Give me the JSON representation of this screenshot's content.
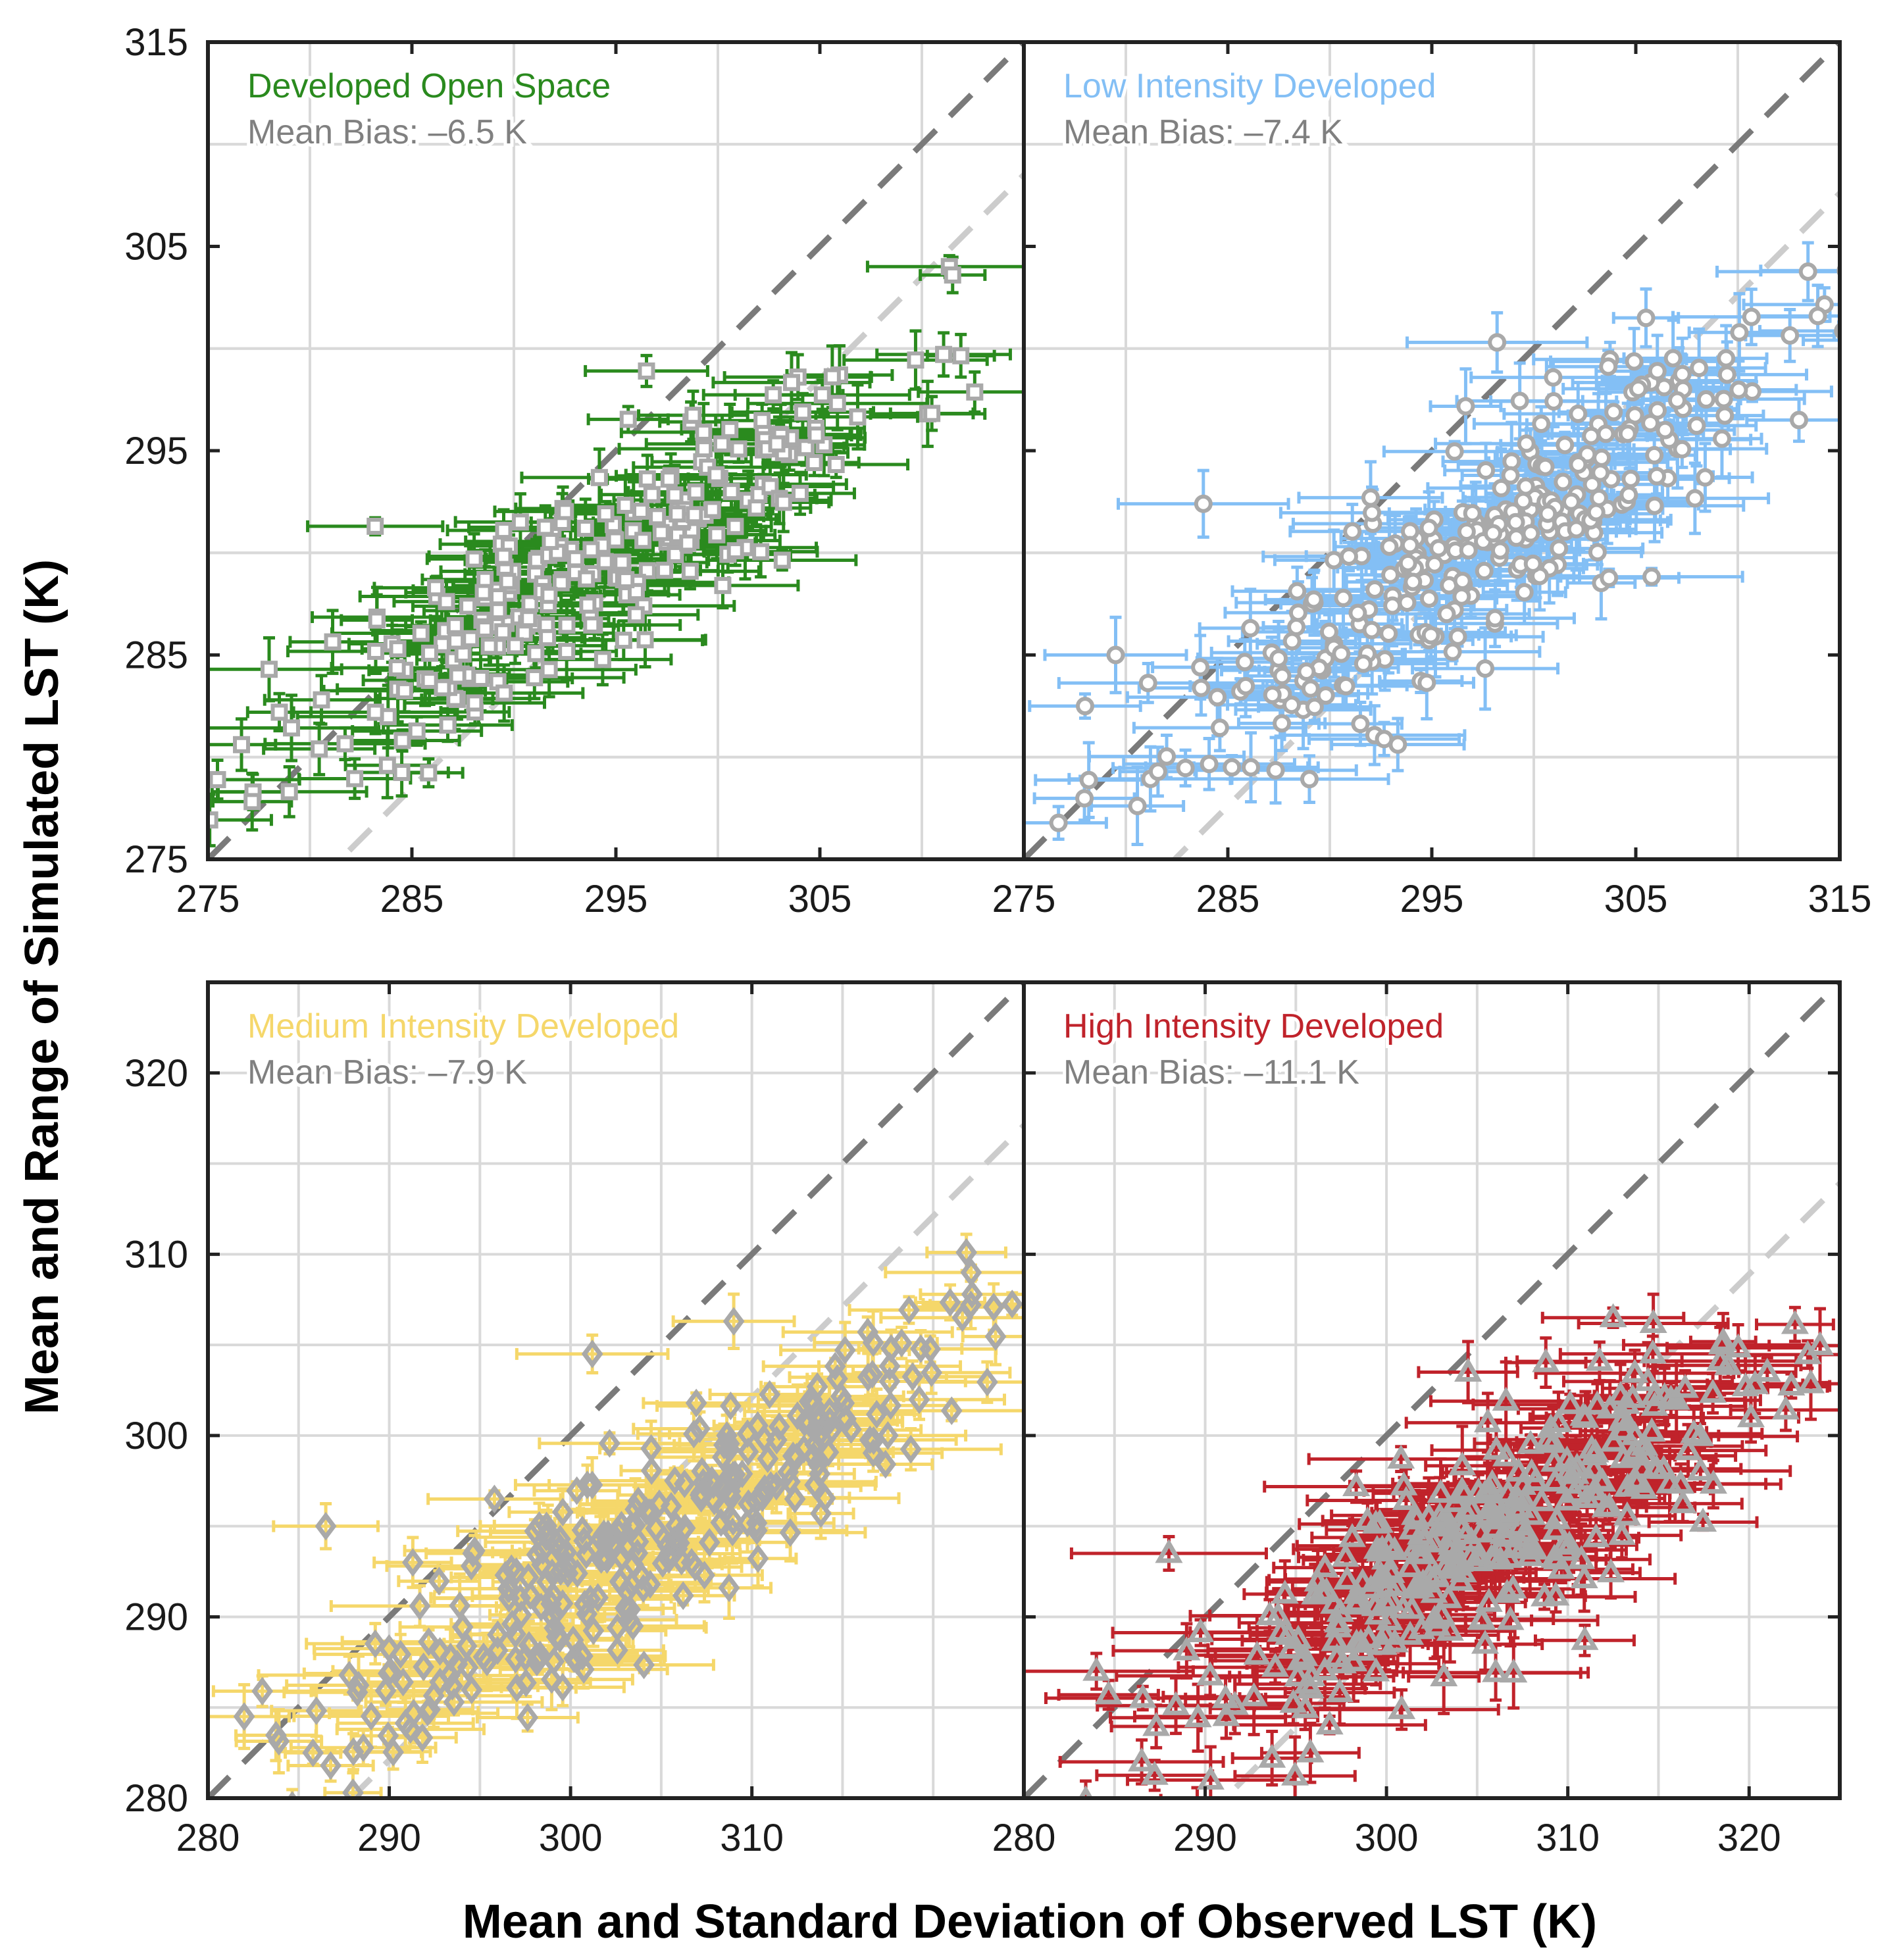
{
  "chart_data": {
    "type": "scatter",
    "ylabel": "Mean and Range of Simulated LST (K)",
    "xlabel": "Mean and Standard Deviation of Observed LST (K)",
    "colors": {
      "one_to_one_line": "#7a7a7a",
      "bias_line": "#cccccc",
      "marker_edge": "#a9a9a9",
      "grid": "#d9d9d9"
    },
    "panels": [
      {
        "id": "developed-open-space",
        "title": "Developed Open Space",
        "bias_label": "Mean Bias: –6.5 K",
        "mean_bias": -6.5,
        "color": "#2a8a1e",
        "marker": "square",
        "xlim": [
          275,
          315
        ],
        "ylim": [
          275,
          315
        ],
        "xticks": [
          275,
          285,
          295,
          305
        ],
        "yticks": [
          275,
          285,
          295,
          305,
          315
        ],
        "center": [
          294,
          289.5
        ],
        "slope": 0.58,
        "spread": [
          7.5,
          1.4
        ],
        "xerr": [
          1.5,
          4.5
        ],
        "yerr": [
          0.4,
          1.6
        ],
        "n": 260,
        "seed": 11,
        "extra_points": [
          [
            278,
            284.3
          ],
          [
            278.5,
            282.2
          ],
          [
            283.2,
            291.3
          ],
          [
            283.8,
            279.6
          ],
          [
            289.5,
            291.1
          ],
          [
            296.5,
            298.9
          ]
        ]
      },
      {
        "id": "low-intensity-developed",
        "title": "Low Intensity Developed",
        "bias_label": "Mean Bias: –7.4 K",
        "mean_bias": -7.4,
        "color": "#83bff5",
        "marker": "circle",
        "xlim": [
          275,
          315
        ],
        "ylim": [
          275,
          315
        ],
        "xticks": [
          275,
          285,
          295,
          305,
          315
        ],
        "yticks": [],
        "center": [
          297,
          290
        ],
        "slope": 0.62,
        "spread": [
          7.5,
          1.5
        ],
        "xerr": [
          1.5,
          4.5
        ],
        "yerr": [
          0.4,
          2.0
        ],
        "n": 280,
        "seed": 23,
        "extra_points": [
          [
            278,
            282.5
          ],
          [
            279.5,
            285
          ],
          [
            283.8,
            292.4
          ],
          [
            285.2,
            279.5
          ],
          [
            298.2,
            300.3
          ],
          [
            292,
            292.7
          ],
          [
            313,
            296.5
          ],
          [
            305.5,
            301.5
          ]
        ]
      },
      {
        "id": "medium-intensity-developed",
        "title": "Medium Intensity Developed",
        "bias_label": "Mean Bias: –7.9 K",
        "mean_bias": -7.9,
        "color": "#f5d76a",
        "marker": "diamond",
        "xlim": [
          280,
          325
        ],
        "ylim": [
          280,
          325
        ],
        "xticks": [
          280,
          290,
          300,
          310
        ],
        "yticks": [
          280,
          290,
          300,
          310,
          320
        ],
        "center": [
          304,
          294.5
        ],
        "slope": 0.62,
        "spread": [
          8.5,
          1.6
        ],
        "xerr": [
          1.5,
          5.0
        ],
        "yerr": [
          0.4,
          1.8
        ],
        "n": 300,
        "seed": 37,
        "extra_points": [
          [
            282,
            284.5
          ],
          [
            283,
            285.9
          ],
          [
            286.5,
            295
          ],
          [
            288,
            280.3
          ],
          [
            291.3,
            293
          ],
          [
            295.8,
            296.5
          ],
          [
            301.2,
            304.5
          ],
          [
            309,
            306.3
          ],
          [
            317.5,
            300
          ]
        ]
      },
      {
        "id": "high-intensity-developed",
        "title": "High Intensity Developed",
        "bias_label": "Mean Bias: –11.1 K",
        "mean_bias": -11.1,
        "color": "#c0232b",
        "marker": "triangle",
        "xlim": [
          280,
          325
        ],
        "ylim": [
          280,
          325
        ],
        "xticks": [
          280,
          290,
          300,
          310,
          320
        ],
        "yticks": [],
        "center": [
          306,
          294.5
        ],
        "slope": 0.58,
        "spread": [
          8.5,
          1.8
        ],
        "xerr": [
          1.5,
          5.5
        ],
        "yerr": [
          0.4,
          2.2
        ],
        "n": 320,
        "seed": 53,
        "extra_points": [
          [
            284,
            287
          ],
          [
            286.5,
            282
          ],
          [
            288,
            293.5
          ],
          [
            290.3,
            281
          ],
          [
            304.5,
            303.5
          ],
          [
            312.5,
            306.5
          ],
          [
            318.5,
            305
          ],
          [
            321,
            303.5
          ]
        ]
      }
    ]
  }
}
